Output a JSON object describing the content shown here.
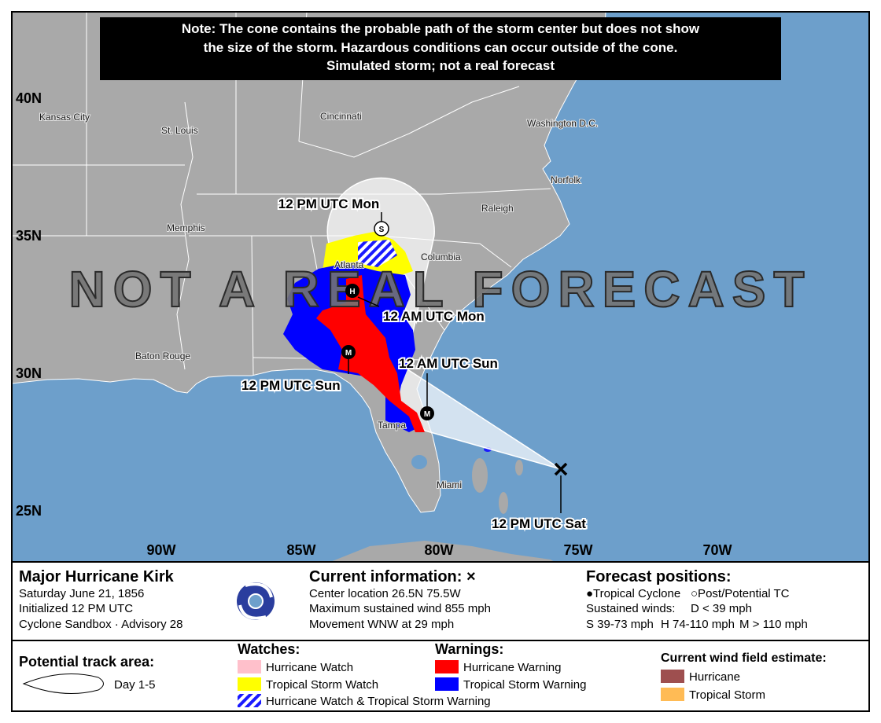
{
  "note": {
    "lines": [
      "Note: The cone contains the probable path of the storm center but does not show",
      "the size of the storm. Hazardous conditions can occur outside of the cone.",
      "Simulated storm; not a real forecast"
    ]
  },
  "watermark": "NOT A REAL FORECAST",
  "map": {
    "lat_labels": [
      "40N",
      "35N",
      "30N",
      "25N"
    ],
    "lon_labels": [
      "90W",
      "85W",
      "80W",
      "75W",
      "70W"
    ],
    "cities": [
      "Kansas City",
      "St. Louis",
      "Cincinnati",
      "Washington D.C.",
      "Norfolk",
      "Raleigh",
      "Memphis",
      "Atlanta",
      "Columbia",
      "Baton Rouge",
      "Tampa",
      "Miami"
    ],
    "track": [
      {
        "time": "12 PM UTC Mon",
        "marker": "S"
      },
      {
        "time": "12 AM UTC Mon",
        "marker": "H"
      },
      {
        "time": "12 AM UTC Sun",
        "marker": "M"
      },
      {
        "time": "12 PM UTC Sun",
        "marker": "M"
      },
      {
        "time": "12 PM UTC Sat"
      }
    ]
  },
  "storm": {
    "name": "Major Hurricane Kirk",
    "date": "Saturday June 21, 1856",
    "initialized": "Initialized 12 PM UTC",
    "source": "Cyclone Sandbox · Advisory 28"
  },
  "current": {
    "title": "Current information: ×",
    "lines": [
      "Center location 26.5N 75.5W",
      "Maximum sustained wind 855 mph",
      "Movement WNW at 29 mph"
    ]
  },
  "forecast": {
    "title": "Forecast positions:",
    "rows": [
      [
        "●Tropical Cyclone",
        "○Post/Potential TC"
      ],
      [
        "Sustained winds:",
        "D < 39 mph"
      ],
      [
        "S 39-73 mph",
        "H 74-110 mph",
        "M > 110 mph"
      ]
    ]
  },
  "legend": {
    "track_area": {
      "title": "Potential track area:",
      "label": "Day 1-5"
    },
    "watches": {
      "title": "Watches:",
      "items": [
        "Hurricane Watch",
        "Tropical Storm Watch",
        "Hurricane Watch & Tropical Storm Warning"
      ]
    },
    "warnings": {
      "title": "Warnings:",
      "items": [
        "Hurricane Warning",
        "Tropical Storm Warning"
      ]
    },
    "wind_field": {
      "title": "Current wind field estimate:",
      "items": [
        "Hurricane",
        "Tropical Storm"
      ]
    }
  }
}
